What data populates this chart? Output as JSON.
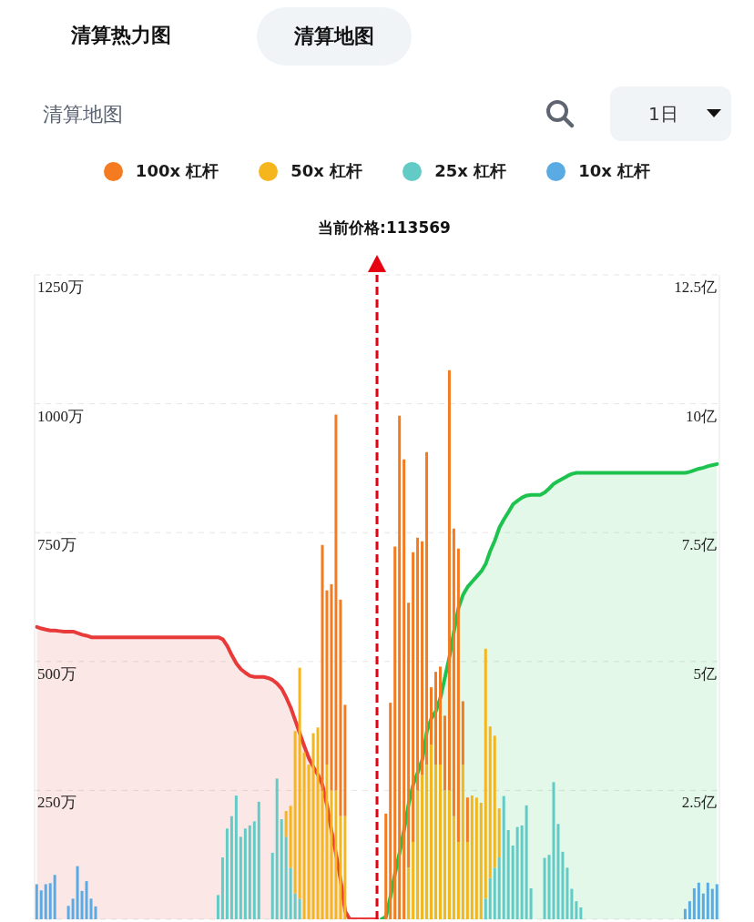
{
  "chart_data": {
    "type": "bar",
    "title": "清算地图",
    "annotations": [
      "清算热力图",
      "清算地图",
      "1日",
      "当前价格:113569"
    ],
    "stacked": true,
    "grid": "y",
    "legend": "top",
    "categories": [
      null,
      null,
      null,
      null,
      null,
      null,
      null,
      null,
      null,
      null,
      null,
      null,
      null,
      null,
      null,
      null,
      null,
      null,
      null,
      null,
      null,
      null,
      null,
      null,
      null,
      null,
      null,
      null,
      null,
      null,
      null,
      null,
      null,
      null,
      null,
      null,
      null,
      null,
      null,
      null,
      null,
      null,
      null,
      null,
      null,
      null,
      null,
      null,
      null,
      null,
      null,
      null,
      null,
      null,
      null,
      null,
      null,
      null,
      null,
      null,
      null,
      null,
      null,
      null,
      null,
      null,
      null,
      null,
      null,
      null,
      null,
      null,
      null,
      null,
      null,
      null,
      null,
      null,
      null,
      null,
      null,
      null,
      null,
      null,
      null,
      null,
      null,
      null,
      null,
      null,
      null,
      null,
      null,
      null,
      null,
      null,
      null,
      null,
      null,
      null,
      null,
      null,
      null,
      null,
      null,
      null,
      null,
      null,
      null,
      null,
      null,
      null,
      null,
      null,
      null,
      null,
      null,
      null,
      null,
      null,
      null,
      null,
      null,
      null,
      null,
      null,
      null,
      null,
      null,
      null,
      null,
      null,
      null,
      null,
      null,
      null,
      null,
      null,
      null,
      null,
      null,
      null,
      null,
      null,
      null,
      null,
      null,
      null,
      null,
      null,
      null
    ],
    "series": [
      {
        "name": "10x 杠杆",
        "color": "#5aaae3",
        "values": [
          68,
          56,
          68,
          70,
          86,
          null,
          null,
          26,
          40,
          103,
          55,
          74,
          40,
          25,
          null,
          null,
          null,
          null,
          null,
          null,
          null,
          null,
          null,
          null,
          null,
          null,
          null,
          null,
          null,
          null,
          null,
          null,
          null,
          null,
          null,
          null,
          null,
          null,
          null,
          null,
          null,
          null,
          null,
          null,
          null,
          null,
          null,
          null,
          null,
          null,
          null,
          null,
          null,
          null,
          null,
          null,
          null,
          null,
          null,
          null,
          null,
          null,
          null,
          null,
          null,
          null,
          null,
          null,
          null,
          null,
          null,
          null,
          null,
          null,
          null,
          null,
          null,
          null,
          null,
          null,
          null,
          null,
          null,
          null,
          null,
          null,
          null,
          null,
          null,
          null,
          null,
          null,
          null,
          null,
          null,
          null,
          null,
          null,
          null,
          null,
          null,
          null,
          null,
          null,
          null,
          null,
          null,
          null,
          null,
          null,
          null,
          null,
          null,
          null,
          null,
          null,
          null,
          null,
          null,
          null,
          null,
          null,
          null,
          null,
          null,
          null,
          null,
          null,
          null,
          null,
          null,
          null,
          null,
          null,
          null,
          null,
          null,
          null,
          null,
          null,
          null,
          null,
          null,
          20,
          35,
          60,
          71,
          50,
          71,
          59,
          68
        ]
      },
      {
        "name": "25x 杠杆",
        "color": "#63cbc6",
        "values": [
          null,
          null,
          null,
          null,
          null,
          null,
          null,
          null,
          null,
          null,
          null,
          null,
          null,
          null,
          null,
          null,
          null,
          null,
          null,
          null,
          null,
          null,
          null,
          null,
          null,
          null,
          null,
          null,
          null,
          null,
          null,
          null,
          null,
          null,
          null,
          null,
          null,
          null,
          null,
          null,
          47,
          120,
          176,
          200,
          240,
          160,
          176,
          182,
          190,
          228,
          null,
          null,
          129,
          273,
          194,
          160,
          100,
          50,
          40,
          null,
          null,
          null,
          null,
          null,
          null,
          null,
          null,
          null,
          null,
          null,
          null,
          null,
          null,
          null,
          null,
          null,
          null,
          null,
          null,
          null,
          null,
          null,
          null,
          null,
          null,
          null,
          null,
          null,
          null,
          null,
          null,
          null,
          null,
          null,
          null,
          null,
          null,
          null,
          null,
          40,
          80,
          100,
          120,
          239,
          173,
          143,
          179,
          182,
          221,
          60,
          null,
          null,
          119,
          125,
          266,
          185,
          131,
          100,
          59,
          35,
          23,
          null,
          null,
          null,
          null,
          null,
          null,
          null,
          null,
          null,
          null,
          null,
          null,
          null,
          null,
          null,
          null,
          null,
          null,
          null,
          null,
          null,
          null,
          null,
          null,
          null,
          null,
          null,
          null,
          null,
          null
        ]
      },
      {
        "name": "50x 杠杆",
        "color": "#f5b51c",
        "values": [
          null,
          null,
          null,
          null,
          null,
          null,
          null,
          null,
          null,
          null,
          null,
          null,
          null,
          null,
          null,
          null,
          null,
          null,
          null,
          null,
          null,
          null,
          null,
          null,
          null,
          null,
          null,
          null,
          null,
          null,
          null,
          null,
          null,
          null,
          null,
          null,
          null,
          null,
          null,
          null,
          null,
          null,
          null,
          null,
          null,
          null,
          null,
          null,
          null,
          null,
          null,
          null,
          null,
          null,
          null,
          50,
          120,
          315,
          448,
          324,
          300,
          361,
          372,
          250,
          300,
          250,
          250,
          200,
          200,
          null,
          null,
          null,
          null,
          null,
          null,
          null,
          null,
          null,
          null,
          null,
          null,
          null,
          100,
          150,
          250,
          280,
          300,
          339,
          300,
          300,
          250,
          250,
          200,
          150,
          300,
          150,
          240,
          236,
          226,
          485,
          294,
          256,
          95,
          null,
          null,
          null,
          null,
          null,
          null,
          null,
          null,
          null,
          null,
          null,
          null,
          null,
          null,
          null,
          null,
          null,
          null,
          null,
          null,
          null,
          null,
          null,
          null,
          null,
          null,
          null,
          null,
          null,
          null,
          null,
          null,
          null,
          null,
          null,
          null,
          null,
          null,
          null,
          null,
          null,
          null,
          null,
          null,
          null,
          null,
          null,
          null
        ]
      },
      {
        "name": "100x 杠杆",
        "color": "#f47b20",
        "values": [
          null,
          null,
          null,
          null,
          null,
          null,
          null,
          null,
          null,
          null,
          null,
          null,
          null,
          null,
          null,
          null,
          null,
          null,
          null,
          null,
          null,
          null,
          null,
          null,
          null,
          null,
          null,
          null,
          null,
          null,
          null,
          null,
          null,
          null,
          null,
          null,
          null,
          null,
          null,
          null,
          null,
          null,
          null,
          null,
          null,
          null,
          null,
          null,
          null,
          null,
          null,
          null,
          null,
          null,
          null,
          null,
          null,
          null,
          null,
          null,
          null,
          null,
          null,
          476,
          338,
          400,
          729,
          420,
          216,
          null,
          null,
          null,
          null,
          null,
          null,
          null,
          null,
          205,
          420,
          723,
          977,
          892,
          514,
          562,
          490,
          453,
          606,
          111,
          180,
          190,
          145,
          815,
          558,
          569,
          123,
          86,
          null,
          null,
          null,
          null,
          null,
          null,
          null,
          null,
          null,
          null,
          null,
          null,
          null,
          null,
          null,
          null,
          null,
          null,
          null,
          null,
          null,
          null,
          null,
          null,
          null,
          null,
          null,
          null,
          null,
          null,
          null,
          null,
          null,
          null,
          null,
          null,
          null,
          null,
          null,
          null,
          null,
          null,
          null,
          null,
          null,
          null,
          null,
          null,
          null,
          null,
          null,
          null,
          null,
          null,
          null
        ]
      },
      {
        "type": "area",
        "axis": "y2",
        "color": "#e93a3a",
        "values": [
          5.67,
          5.64,
          5.62,
          5.6,
          5.6,
          5.59,
          5.58,
          5.58,
          5.58,
          5.55,
          5.52,
          5.5,
          5.47,
          5.47,
          5.47,
          5.47,
          5.47,
          5.47,
          5.47,
          5.47,
          5.47,
          5.47,
          5.47,
          5.47,
          5.47,
          5.47,
          5.47,
          5.47,
          5.47,
          5.47,
          5.47,
          5.47,
          5.47,
          5.47,
          5.47,
          5.47,
          5.47,
          5.47,
          5.47,
          5.47,
          5.47,
          5.43,
          5.3,
          5.12,
          4.96,
          4.85,
          4.78,
          4.72,
          4.7,
          4.7,
          4.7,
          4.68,
          4.64,
          4.57,
          4.47,
          4.3,
          4.1,
          3.85,
          3.6,
          3.35,
          3.12,
          2.95,
          2.8,
          2.6,
          2.2,
          1.7,
          1.25,
          0.75,
          0.15,
          0,
          0,
          0,
          0,
          0,
          0,
          0,
          null,
          null,
          null,
          null,
          null,
          null,
          null,
          null,
          null,
          null,
          null,
          null,
          null,
          null,
          null,
          null,
          null,
          null,
          null,
          null,
          null,
          null,
          null,
          null,
          null,
          null,
          null,
          null,
          null,
          null,
          null,
          null,
          null,
          null,
          null,
          null,
          null,
          null,
          null,
          null,
          null,
          null,
          null,
          null,
          null,
          null,
          null,
          null,
          null,
          null,
          null,
          null,
          null,
          null,
          null,
          null,
          null,
          null,
          null,
          null,
          null,
          null,
          null,
          null,
          null,
          null,
          null,
          null,
          null,
          null,
          null,
          null,
          null,
          null,
          null
        ]
      },
      {
        "type": "area",
        "axis": "y2",
        "color": "#1ec24f",
        "values": [
          null,
          null,
          null,
          null,
          null,
          null,
          null,
          null,
          null,
          null,
          null,
          null,
          null,
          null,
          null,
          null,
          null,
          null,
          null,
          null,
          null,
          null,
          null,
          null,
          null,
          null,
          null,
          null,
          null,
          null,
          null,
          null,
          null,
          null,
          null,
          null,
          null,
          null,
          null,
          null,
          null,
          null,
          null,
          null,
          null,
          null,
          null,
          null,
          null,
          null,
          null,
          null,
          null,
          null,
          null,
          null,
          null,
          null,
          null,
          null,
          null,
          null,
          null,
          null,
          null,
          null,
          null,
          null,
          null,
          null,
          null,
          null,
          null,
          null,
          null,
          null,
          0,
          0.05,
          0.45,
          0.9,
          1.3,
          1.75,
          2.25,
          2.62,
          2.85,
          3.1,
          3.65,
          3.9,
          4.04,
          4.3,
          4.7,
          5.1,
          5.6,
          6.05,
          6.3,
          6.45,
          6.55,
          6.65,
          6.75,
          6.9,
          7.15,
          7.35,
          7.6,
          7.76,
          7.9,
          8.05,
          8.12,
          8.18,
          8.22,
          8.23,
          8.23,
          8.23,
          8.28,
          8.36,
          8.45,
          8.5,
          8.55,
          8.6,
          8.64,
          8.66,
          8.66,
          8.66,
          8.66,
          8.66,
          8.66,
          8.66,
          8.66,
          8.66,
          8.66,
          8.66,
          8.66,
          8.66,
          8.66,
          8.66,
          8.66,
          8.66,
          8.66,
          8.66,
          8.66,
          8.66,
          8.66,
          8.66,
          8.66,
          8.66,
          8.68,
          8.71,
          8.74,
          8.76,
          8.79,
          8.81,
          8.83
        ]
      }
    ],
    "ylim": [
      0,
      1250
    ],
    "yticks": [
      {
        "value": 0,
        "label": null
      },
      {
        "value": 250,
        "label": "250万"
      },
      {
        "value": 500,
        "label": "500万"
      },
      {
        "value": 750,
        "label": "750万"
      },
      {
        "value": 1000,
        "label": "1000万"
      },
      {
        "value": 1250,
        "label": "1250万"
      }
    ],
    "y2lim": [
      0,
      12.5
    ],
    "y2ticks": [
      {
        "value": 0,
        "label": null
      },
      {
        "value": 2.5,
        "label": "2.5亿"
      },
      {
        "value": 5,
        "label": "5亿"
      },
      {
        "value": 7.5,
        "label": "7.5亿"
      },
      {
        "value": 10,
        "label": "10亿"
      },
      {
        "value": 12.5,
        "label": "12.5亿"
      }
    ]
  }
}
